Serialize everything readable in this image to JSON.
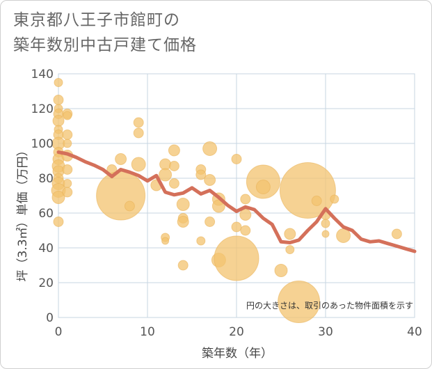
{
  "chart_data": {
    "type": "scatter",
    "title": "東京都八王子市館町の\n築年数別中古戸建て価格",
    "xlabel": "築年数（年）",
    "ylabel": "坪（3.3㎡）単価（万円）",
    "xlim": [
      0,
      40
    ],
    "ylim": [
      0,
      140
    ],
    "xticks": [
      "0",
      "10",
      "20",
      "30",
      "40"
    ],
    "yticks": [
      "0",
      "20",
      "40",
      "60",
      "80",
      "100",
      "120",
      "140"
    ],
    "grid": true,
    "note": "円の大きさは、取引のあった物件面積を示す",
    "colors": {
      "bubble": "#f3c36f",
      "line": "#d4705a",
      "grid": "#c7d6e2",
      "text": "#555555"
    },
    "bubbles": [
      {
        "x": 0,
        "y": 135,
        "s": 6
      },
      {
        "x": 0,
        "y": 125,
        "s": 7
      },
      {
        "x": 0,
        "y": 120,
        "s": 6
      },
      {
        "x": 0,
        "y": 117,
        "s": 7
      },
      {
        "x": 0,
        "y": 113,
        "s": 8
      },
      {
        "x": 0,
        "y": 108,
        "s": 6
      },
      {
        "x": 0,
        "y": 105,
        "s": 7
      },
      {
        "x": 0,
        "y": 100,
        "s": 9
      },
      {
        "x": 0,
        "y": 95,
        "s": 7
      },
      {
        "x": 0,
        "y": 91,
        "s": 8
      },
      {
        "x": 0,
        "y": 87,
        "s": 9
      },
      {
        "x": 0,
        "y": 84,
        "s": 8
      },
      {
        "x": 0,
        "y": 80,
        "s": 7
      },
      {
        "x": 0,
        "y": 77,
        "s": 9
      },
      {
        "x": 0,
        "y": 73,
        "s": 10
      },
      {
        "x": 0,
        "y": 69,
        "s": 9
      },
      {
        "x": 0,
        "y": 55,
        "s": 7
      },
      {
        "x": 1,
        "y": 117,
        "s": 7
      },
      {
        "x": 1,
        "y": 116,
        "s": 6
      },
      {
        "x": 1,
        "y": 105,
        "s": 7
      },
      {
        "x": 1,
        "y": 100,
        "s": 6
      },
      {
        "x": 1,
        "y": 93,
        "s": 8
      },
      {
        "x": 1,
        "y": 85,
        "s": 7
      },
      {
        "x": 1,
        "y": 77,
        "s": 6
      },
      {
        "x": 1,
        "y": 72,
        "s": 7
      },
      {
        "x": 6,
        "y": 85,
        "s": 7
      },
      {
        "x": 7,
        "y": 91,
        "s": 8
      },
      {
        "x": 7,
        "y": 70,
        "s": 35
      },
      {
        "x": 8,
        "y": 64,
        "s": 7
      },
      {
        "x": 9,
        "y": 112,
        "s": 7
      },
      {
        "x": 9,
        "y": 106,
        "s": 7
      },
      {
        "x": 9,
        "y": 88,
        "s": 10
      },
      {
        "x": 11,
        "y": 76,
        "s": 8
      },
      {
        "x": 12,
        "y": 88,
        "s": 8
      },
      {
        "x": 12,
        "y": 82,
        "s": 9
      },
      {
        "x": 12,
        "y": 46,
        "s": 6
      },
      {
        "x": 12,
        "y": 44,
        "s": 5
      },
      {
        "x": 13,
        "y": 96,
        "s": 8
      },
      {
        "x": 13,
        "y": 87,
        "s": 7
      },
      {
        "x": 13,
        "y": 77,
        "s": 7
      },
      {
        "x": 14,
        "y": 65,
        "s": 9
      },
      {
        "x": 14,
        "y": 57,
        "s": 7
      },
      {
        "x": 14,
        "y": 55,
        "s": 8
      },
      {
        "x": 14,
        "y": 30,
        "s": 7
      },
      {
        "x": 16,
        "y": 85,
        "s": 7
      },
      {
        "x": 16,
        "y": 82,
        "s": 7
      },
      {
        "x": 16,
        "y": 44,
        "s": 6
      },
      {
        "x": 17,
        "y": 97,
        "s": 10
      },
      {
        "x": 17,
        "y": 79,
        "s": 8
      },
      {
        "x": 17,
        "y": 55,
        "s": 7
      },
      {
        "x": 18,
        "y": 68,
        "s": 9
      },
      {
        "x": 18,
        "y": 64,
        "s": 9
      },
      {
        "x": 18,
        "y": 33,
        "s": 10
      },
      {
        "x": 20,
        "y": 91,
        "s": 7
      },
      {
        "x": 20,
        "y": 52,
        "s": 7
      },
      {
        "x": 20,
        "y": 34,
        "s": 32
      },
      {
        "x": 21,
        "y": 68,
        "s": 7
      },
      {
        "x": 21,
        "y": 59,
        "s": 8
      },
      {
        "x": 21,
        "y": 50,
        "s": 7
      },
      {
        "x": 23,
        "y": 78,
        "s": 24
      },
      {
        "x": 23,
        "y": 75,
        "s": 10
      },
      {
        "x": 25,
        "y": 27,
        "s": 9
      },
      {
        "x": 26,
        "y": 48,
        "s": 8
      },
      {
        "x": 26,
        "y": 39,
        "s": 6
      },
      {
        "x": 27,
        "y": 9,
        "s": 30
      },
      {
        "x": 28,
        "y": 73,
        "s": 40
      },
      {
        "x": 29,
        "y": 67,
        "s": 7
      },
      {
        "x": 30,
        "y": 59,
        "s": 7
      },
      {
        "x": 30,
        "y": 54,
        "s": 6
      },
      {
        "x": 30,
        "y": 48,
        "s": 5
      },
      {
        "x": 31,
        "y": 68,
        "s": 6
      },
      {
        "x": 32,
        "y": 47,
        "s": 10
      },
      {
        "x": 38,
        "y": 48,
        "s": 7
      }
    ],
    "trend": {
      "x": [
        0,
        1,
        2,
        3,
        4,
        5,
        6,
        7,
        8,
        9,
        10,
        11,
        12,
        13,
        14,
        15,
        16,
        17,
        18,
        19,
        20,
        21,
        22,
        23,
        24,
        25,
        26,
        27,
        28,
        29,
        30,
        31,
        32,
        33,
        34,
        35,
        36,
        37,
        38,
        39,
        40
      ],
      "y": [
        95,
        94,
        92,
        89.5,
        87.5,
        85,
        81,
        85,
        83.5,
        81.5,
        78.5,
        81.5,
        72,
        70.5,
        71.5,
        74.5,
        71,
        73,
        69,
        64.5,
        61,
        63.5,
        62,
        57,
        53.5,
        43.5,
        43,
        44.5,
        50,
        55,
        62.5,
        57,
        52,
        50,
        45,
        43.5,
        44,
        42.5,
        41,
        39.5,
        38
      ]
    }
  }
}
